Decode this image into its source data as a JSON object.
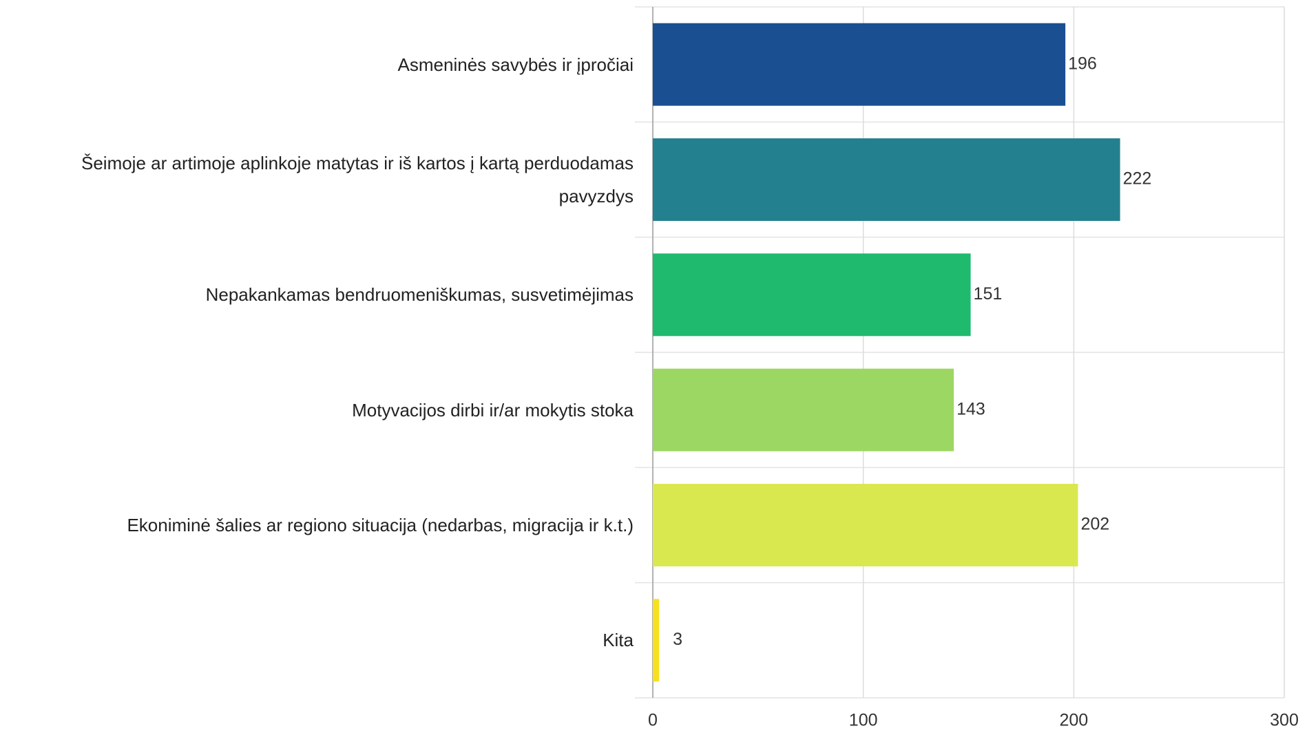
{
  "chart_data": {
    "type": "barh",
    "categories": [
      "Asmeninės savybės ir įpročiai",
      "Šeimoje ar artimoje aplinkoje matytas ir iš kartos į kartą perduodamas pavyzdys",
      "Nepakankamas bendruomeniškumas, susvetimėjimas",
      "Motyvacijos dirbi ir/ar mokytis stoka",
      "Ekoniminė šalies ar regiono situacija (nedarbas, migracija ir k.t.)",
      "Kita"
    ],
    "values": [
      196,
      222,
      151,
      143,
      202,
      3
    ],
    "colors": [
      "#1a4f91",
      "#23818f",
      "#1fba6e",
      "#9dd763",
      "#dae84f",
      "#f7e020"
    ],
    "xlim": [
      0,
      300
    ],
    "xticks": [
      0,
      100,
      200,
      300
    ],
    "grid": true
  }
}
